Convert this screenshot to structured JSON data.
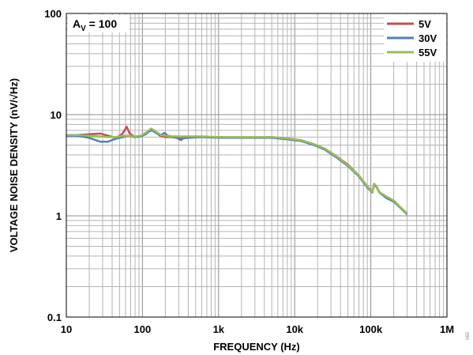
{
  "chart_data": {
    "type": "line",
    "xlabel": "FREQUENCY (Hz)",
    "ylabel": "VOLTAGE NOISE DENSITY (nV/√Hz)",
    "xscale": "log",
    "yscale": "log",
    "xlim": [
      10,
      1000000
    ],
    "ylim": [
      0.1,
      100
    ],
    "grid": true,
    "legend_position": "top-right",
    "x_tick_labels": [
      "10",
      "100",
      "1k",
      "10k",
      "100k",
      "1M"
    ],
    "y_tick_labels": [
      "0.1",
      "1",
      "10",
      "100"
    ],
    "annotation": {
      "main": "A",
      "subscript": "V",
      "rest": " = 100"
    },
    "figure_id": "065",
    "series": [
      {
        "name": "5V",
        "color": "#c0504d",
        "points": [
          [
            10,
            6.3
          ],
          [
            14,
            6.3
          ],
          [
            20,
            6.4
          ],
          [
            28,
            6.5
          ],
          [
            35,
            6.2
          ],
          [
            45,
            5.9
          ],
          [
            55,
            6.5
          ],
          [
            62,
            7.6
          ],
          [
            68,
            6.5
          ],
          [
            80,
            6.0
          ],
          [
            95,
            6.1
          ],
          [
            110,
            6.5
          ],
          [
            130,
            7.0
          ],
          [
            145,
            6.8
          ],
          [
            170,
            6.2
          ],
          [
            200,
            6.0
          ],
          [
            240,
            6.0
          ],
          [
            280,
            5.9
          ],
          [
            320,
            5.6
          ],
          [
            350,
            5.9
          ],
          [
            400,
            6.0
          ],
          [
            600,
            6.0
          ],
          [
            1000,
            6.0
          ],
          [
            2000,
            5.9
          ],
          [
            3000,
            5.9
          ],
          [
            5000,
            6.0
          ],
          [
            8000,
            5.8
          ],
          [
            12000,
            5.6
          ],
          [
            18000,
            5.1
          ],
          [
            25000,
            4.6
          ],
          [
            35000,
            3.9
          ],
          [
            50000,
            3.2
          ],
          [
            70000,
            2.5
          ],
          [
            90000,
            1.95
          ],
          [
            105000,
            1.75
          ],
          [
            110000,
            2.0
          ],
          [
            118000,
            1.95
          ],
          [
            130000,
            1.7
          ],
          [
            160000,
            1.55
          ],
          [
            200000,
            1.4
          ],
          [
            250000,
            1.2
          ],
          [
            300000,
            1.05
          ]
        ]
      },
      {
        "name": "30V",
        "color": "#4f81bd",
        "points": [
          [
            10,
            6.2
          ],
          [
            14,
            6.2
          ],
          [
            20,
            5.9
          ],
          [
            28,
            5.4
          ],
          [
            35,
            5.4
          ],
          [
            45,
            5.8
          ],
          [
            55,
            6.0
          ],
          [
            65,
            6.2
          ],
          [
            80,
            6.0
          ],
          [
            95,
            6.1
          ],
          [
            110,
            6.4
          ],
          [
            130,
            7.1
          ],
          [
            150,
            6.6
          ],
          [
            175,
            6.3
          ],
          [
            195,
            6.6
          ],
          [
            215,
            6.2
          ],
          [
            260,
            6.0
          ],
          [
            320,
            5.8
          ],
          [
            400,
            5.9
          ],
          [
            600,
            6.0
          ],
          [
            1000,
            5.9
          ],
          [
            2000,
            5.9
          ],
          [
            3000,
            5.9
          ],
          [
            5000,
            5.9
          ],
          [
            8000,
            5.7
          ],
          [
            12000,
            5.5
          ],
          [
            18000,
            5.0
          ],
          [
            25000,
            4.5
          ],
          [
            35000,
            3.8
          ],
          [
            50000,
            3.1
          ],
          [
            70000,
            2.45
          ],
          [
            90000,
            1.9
          ],
          [
            105000,
            1.7
          ],
          [
            110000,
            2.05
          ],
          [
            118000,
            1.95
          ],
          [
            130000,
            1.7
          ],
          [
            160000,
            1.5
          ],
          [
            200000,
            1.38
          ],
          [
            250000,
            1.18
          ],
          [
            300000,
            1.03
          ]
        ]
      },
      {
        "name": "55V",
        "color": "#9bbb59",
        "points": [
          [
            10,
            6.3
          ],
          [
            14,
            6.3
          ],
          [
            20,
            6.2
          ],
          [
            28,
            6.1
          ],
          [
            35,
            6.0
          ],
          [
            45,
            6.0
          ],
          [
            55,
            6.2
          ],
          [
            65,
            6.2
          ],
          [
            80,
            6.1
          ],
          [
            95,
            6.2
          ],
          [
            110,
            6.6
          ],
          [
            130,
            7.3
          ],
          [
            150,
            6.8
          ],
          [
            175,
            6.3
          ],
          [
            200,
            6.2
          ],
          [
            240,
            6.1
          ],
          [
            300,
            6.1
          ],
          [
            400,
            6.1
          ],
          [
            600,
            6.1
          ],
          [
            1000,
            6.0
          ],
          [
            2000,
            6.0
          ],
          [
            3000,
            6.0
          ],
          [
            5000,
            6.0
          ],
          [
            8000,
            5.8
          ],
          [
            12000,
            5.6
          ],
          [
            18000,
            5.1
          ],
          [
            25000,
            4.6
          ],
          [
            35000,
            3.9
          ],
          [
            50000,
            3.15
          ],
          [
            70000,
            2.5
          ],
          [
            90000,
            1.95
          ],
          [
            105000,
            1.72
          ],
          [
            110000,
            2.08
          ],
          [
            118000,
            1.98
          ],
          [
            130000,
            1.72
          ],
          [
            160000,
            1.55
          ],
          [
            200000,
            1.42
          ],
          [
            250000,
            1.2
          ],
          [
            300000,
            1.04
          ]
        ]
      }
    ]
  }
}
